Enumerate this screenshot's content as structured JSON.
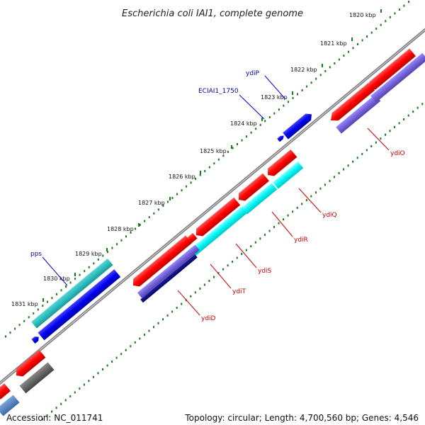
{
  "title": "Escherichia coli IAI1, complete genome",
  "ticks": [
    "1820 kbp",
    "1821 kbp",
    "1822 kbp",
    "1823 kbp",
    "1824 kbp",
    "1825 kbp",
    "1826 kbp",
    "1827 kbp",
    "1828 kbp",
    "1829 kbp",
    "1830 kbp",
    "1831 kbp"
  ],
  "genes_plus": [
    "ydiP",
    "ECIAI1_1750",
    "pps"
  ],
  "genes_minus": [
    "ydiO",
    "ydiQ",
    "ydiR",
    "ydiS",
    "ydiT",
    "ydiD"
  ],
  "footer": {
    "accession": "Accession: NC_011741",
    "topology": "Topology: circular; Length: 4,700,560 bp; Genes: 4,546"
  },
  "colors": {
    "backbone": "#8a8a8a",
    "gene_red": "#ff0000",
    "gene_blue": "#0000ee",
    "gene_cyan": "#00ffff",
    "gene_teal": "#30c0c0",
    "gene_slate": "#7060d0",
    "gene_navy": "#0a0a80",
    "gene_gray": "#666666",
    "label_plus": "#0000aa",
    "label_minus": "#cc0000",
    "dots": "#1a7a1a"
  }
}
